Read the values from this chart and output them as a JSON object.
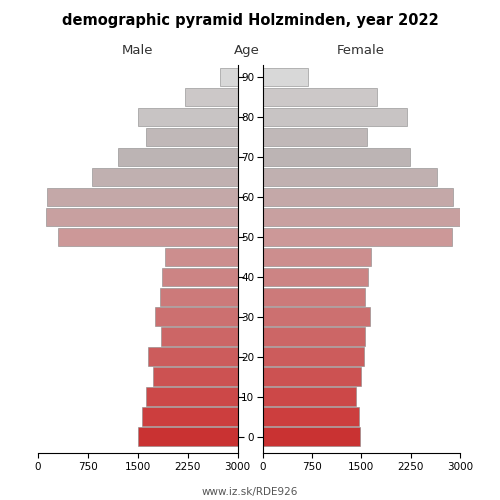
{
  "title": "demographic pyramid Holzminden, year 2022",
  "watermark": "www.iz.sk/RDE926",
  "ages": [
    0,
    5,
    10,
    15,
    20,
    25,
    30,
    35,
    40,
    45,
    50,
    55,
    60,
    65,
    70,
    75,
    80,
    85,
    90
  ],
  "male": [
    1500,
    1440,
    1380,
    1270,
    1340,
    1150,
    1240,
    1160,
    1130,
    1090,
    2700,
    2880,
    2860,
    2190,
    1790,
    1370,
    1490,
    790,
    265
  ],
  "female": [
    1480,
    1470,
    1420,
    1500,
    1540,
    1560,
    1640,
    1550,
    1610,
    1650,
    2880,
    3000,
    2900,
    2650,
    2240,
    1590,
    2190,
    1740,
    685
  ],
  "xlim": 3000,
  "xticks": [
    0,
    750,
    1500,
    2250,
    3000
  ],
  "yticks": [
    0,
    10,
    20,
    30,
    40,
    50,
    60,
    70,
    80,
    90
  ],
  "bar_height": 4.6,
  "colors_by_age": {
    "0": "#c93232",
    "5": "#cc3e3e",
    "10": "#cc4848",
    "15": "#cc5252",
    "20": "#cc5c5c",
    "25": "#cc6666",
    "30": "#cc7070",
    "35": "#cc7a7a",
    "40": "#cc8484",
    "45": "#cc8e8e",
    "50": "#cc9898",
    "55": "#c8a0a0",
    "60": "#c4a8a8",
    "65": "#c0b0b0",
    "70": "#bcb4b4",
    "75": "#c0b8b8",
    "80": "#c8c4c4",
    "85": "#ccc8c8",
    "90": "#d8d8d8"
  },
  "figsize": [
    5.0,
    5.0
  ],
  "dpi": 100
}
